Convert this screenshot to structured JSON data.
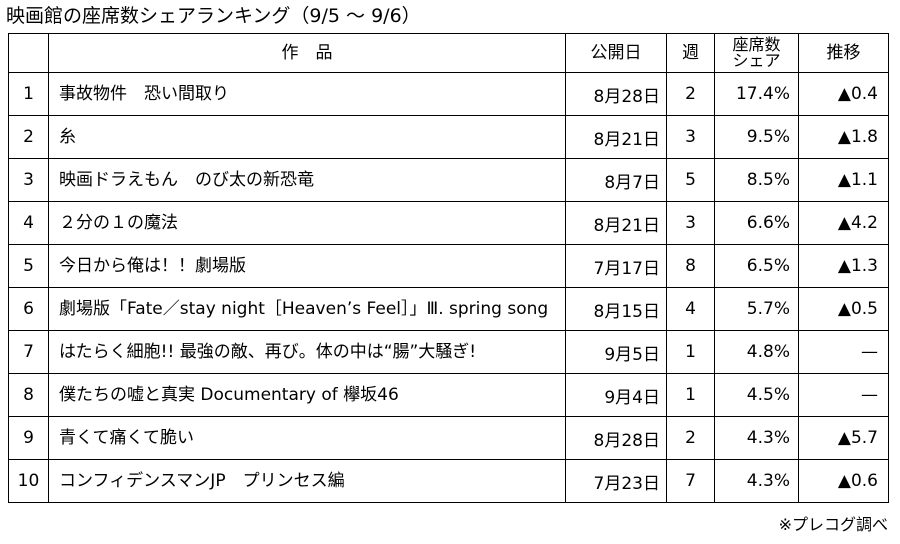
{
  "title": "映画館の座席数シェアランキング（9/5 ～ 9/6）",
  "headers": {
    "rank": "",
    "title": "作　品",
    "release": "公開日",
    "week": "週",
    "share_line1": "座席数",
    "share_line2": "シェア",
    "trend": "推移"
  },
  "rows": [
    {
      "rank": "1",
      "title": "事故物件　恐い間取り",
      "release": "8月28日",
      "week": "2",
      "share": "17.4%",
      "trend": "▲0.4"
    },
    {
      "rank": "2",
      "title": "糸",
      "release": "8月21日",
      "week": "3",
      "share": "9.5%",
      "trend": "▲1.8"
    },
    {
      "rank": "3",
      "title": "映画ドラえもん　のび太の新恐竜",
      "release": "8月7日",
      "week": "5",
      "share": "8.5%",
      "trend": "▲1.1"
    },
    {
      "rank": "4",
      "title": "２分の１の魔法",
      "release": "8月21日",
      "week": "3",
      "share": "6.6%",
      "trend": "▲4.2"
    },
    {
      "rank": "5",
      "title": "今日から俺は！！劇場版",
      "release": "7月17日",
      "week": "8",
      "share": "6.5%",
      "trend": "▲1.3"
    },
    {
      "rank": "6",
      "title": "劇場版「Fate／stay night［Heaven’s Feel］」Ⅲ. spring song",
      "release": "8月15日",
      "week": "4",
      "share": "5.7%",
      "trend": "▲0.5"
    },
    {
      "rank": "7",
      "title": "はたらく細胞!! 最強の敵、再び。体の中は“腸”大騒ぎ!",
      "release": "9月5日",
      "week": "1",
      "share": "4.8%",
      "trend": "—"
    },
    {
      "rank": "8",
      "title": "僕たちの嘘と真実 Documentary of 欅坂46",
      "release": "9月4日",
      "week": "1",
      "share": "4.5%",
      "trend": "—"
    },
    {
      "rank": "9",
      "title": "青くて痛くて脆い",
      "release": "8月28日",
      "week": "2",
      "share": "4.3%",
      "trend": "▲5.7"
    },
    {
      "rank": "10",
      "title": "コンフィデンスマンJP　プリンセス編",
      "release": "7月23日",
      "week": "7",
      "share": "4.3%",
      "trend": "▲0.6"
    }
  ],
  "source_note": "※プレコグ調べ"
}
